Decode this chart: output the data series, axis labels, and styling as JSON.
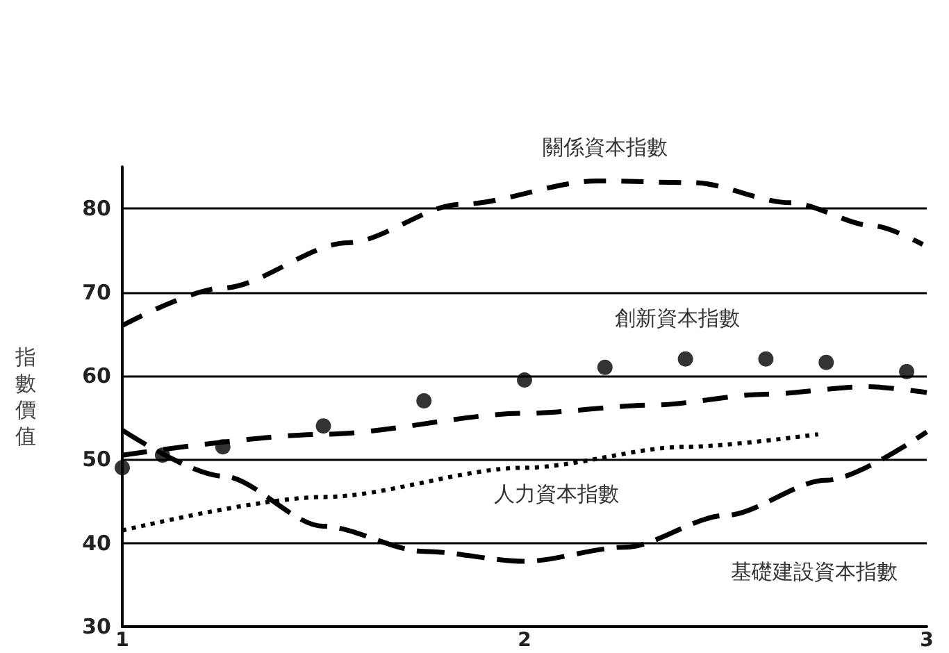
{
  "chart_data": {
    "type": "line",
    "ylabel": "指數價值",
    "xlim": [
      1,
      3
    ],
    "xticks": [
      1,
      2,
      3
    ],
    "ylim": [
      30,
      85
    ],
    "yticks": [
      30,
      40,
      50,
      60,
      70,
      80
    ],
    "grid": "y",
    "series": [
      {
        "color": "#000000",
        "line_style": "dashed",
        "x": [
          1,
          1.25,
          1.56,
          1.84,
          2.18,
          2.42,
          2.66,
          2.87,
          2.99
        ],
        "values": [
          66,
          70.5,
          75.9,
          80.5,
          83.3,
          83.1,
          80.7,
          77.9,
          75.7
        ]
      },
      {
        "type": "scatter",
        "color": "#000000",
        "marker": "circle",
        "x": [
          1,
          1.1,
          1.25,
          1.5,
          1.75,
          2,
          2.2,
          2.4,
          2.6,
          2.75,
          2.95
        ],
        "values": [
          49,
          50.5,
          51.5,
          54,
          57,
          59.5,
          61,
          62,
          62,
          61.6,
          60.5
        ]
      },
      {
        "color": "#000000",
        "line_style": "dashed",
        "x": [
          1,
          1.5,
          2,
          2.32,
          2.6,
          2.85,
          3
        ],
        "values": [
          50.5,
          53,
          55.5,
          56.5,
          57.8,
          58.7,
          58
        ]
      },
      {
        "color": "#000000",
        "line_style": "dotted",
        "x": [
          1,
          1.5,
          2,
          2.4,
          2.73
        ],
        "values": [
          41.5,
          45.5,
          49,
          51.5,
          53
        ]
      },
      {
        "color": "#000000",
        "line_style": "dashed",
        "x": [
          1,
          1.25,
          1.5,
          1.75,
          2,
          2.25,
          2.5,
          2.75,
          3
        ],
        "values": [
          53.5,
          48,
          42,
          39,
          37.8,
          39.5,
          43.3,
          47.5,
          53.3
        ]
      }
    ],
    "annotations": [
      {
        "text": "關係資本指數",
        "x": 2.2,
        "y": 83.3
      },
      "創新資本指數",
      {
        "text": "人力資本指數",
        "x": 2.08,
        "y": 49.5
      },
      "基礎建設資本指數"
    ]
  }
}
